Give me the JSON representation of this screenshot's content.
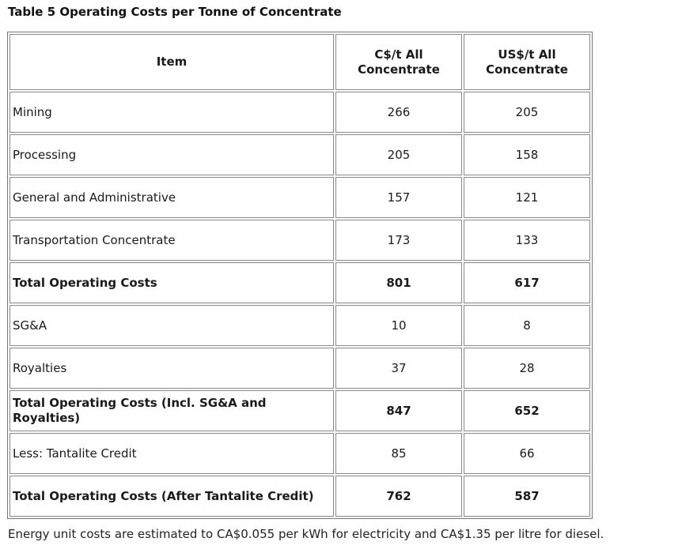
{
  "title": "Table 5 Operating Costs per Tonne of Concentrate",
  "table": {
    "headers": {
      "item": "Item",
      "cad_line1": "C$/t All",
      "cad_line2": "Concentrate",
      "usd_line1": "US$/t All",
      "usd_line2": "Concentrate"
    },
    "rows": [
      {
        "item": "Mining",
        "cad": "266",
        "usd": "205",
        "bold": false
      },
      {
        "item": "Processing",
        "cad": "205",
        "usd": "158",
        "bold": false
      },
      {
        "item": "General and Administrative",
        "cad": "157",
        "usd": "121",
        "bold": false
      },
      {
        "item": "Transportation Concentrate",
        "cad": "173",
        "usd": "133",
        "bold": false
      },
      {
        "item": "Total Operating Costs",
        "cad": "801",
        "usd": "617",
        "bold": true
      },
      {
        "item": "SG&A",
        "cad": "10",
        "usd": "8",
        "bold": false
      },
      {
        "item": "Royalties",
        "cad": "37",
        "usd": "28",
        "bold": false
      },
      {
        "item": "Total Operating Costs (Incl. SG&A and Royalties)",
        "cad": "847",
        "usd": "652",
        "bold": true
      },
      {
        "item": "Less: Tantalite Credit",
        "cad": "85",
        "usd": "66",
        "bold": false
      },
      {
        "item": "Total Operating Costs (After Tantalite Credit)",
        "cad": "762",
        "usd": "587",
        "bold": true
      }
    ]
  },
  "footnote": "Energy unit costs are estimated to CA$0.055 per kWh for electricity and CA$1.35 per litre for diesel."
}
